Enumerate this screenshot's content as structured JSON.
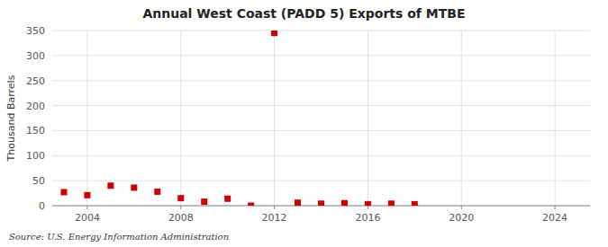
{
  "chart_data": {
    "type": "scatter",
    "title": "Annual West Coast (PADD 5) Exports of MTBE",
    "ylabel": "Thousand Barrels",
    "source": "Source: U.S. Energy Information Administration",
    "color": "#cc0000",
    "marker": "square",
    "grid": true,
    "xlim": [
      2002.5,
      2025.5
    ],
    "ylim": [
      0,
      350
    ],
    "xticks": [
      2004,
      2008,
      2012,
      2016,
      2020,
      2024
    ],
    "yticks": [
      0,
      50,
      100,
      150,
      200,
      250,
      300,
      350
    ],
    "x": [
      2003,
      2004,
      2005,
      2006,
      2007,
      2008,
      2009,
      2010,
      2011,
      2012,
      2013,
      2014,
      2015,
      2016,
      2017,
      2018
    ],
    "values": [
      27,
      21,
      40,
      36,
      28,
      15,
      8,
      14,
      0,
      345,
      6,
      4,
      5,
      3,
      4,
      3
    ]
  }
}
